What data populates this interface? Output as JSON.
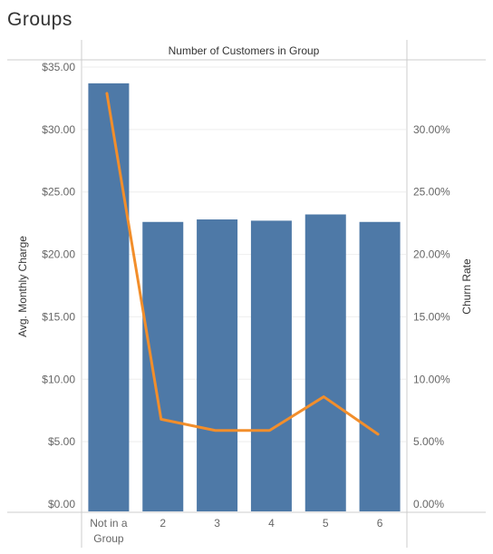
{
  "page": {
    "title": "Groups"
  },
  "chart_data": {
    "type": "bar",
    "title": "Groups",
    "header": "Number of Customers in Group",
    "categories": [
      "Not in a Group",
      "2",
      "3",
      "4",
      "5",
      "6"
    ],
    "category_lines": [
      [
        "Not in a",
        "Group"
      ],
      [
        "2"
      ],
      [
        "3"
      ],
      [
        "4"
      ],
      [
        "5"
      ],
      [
        "6"
      ]
    ],
    "series": [
      {
        "name": "Avg. Monthly Charge",
        "type": "bar",
        "axis": "left",
        "values": [
          33.7,
          22.6,
          22.8,
          22.7,
          23.2,
          22.6
        ]
      },
      {
        "name": "Churn Rate",
        "type": "line",
        "axis": "right",
        "values": [
          32.9,
          6.8,
          5.9,
          5.9,
          8.6,
          5.6
        ]
      }
    ],
    "y_left": {
      "label": "Avg. Monthly Charge",
      "min": 0,
      "max": 35,
      "ticks": [
        0,
        5,
        10,
        15,
        20,
        25,
        30,
        35
      ],
      "tick_labels": [
        "$0.00",
        "$5.00",
        "$10.00",
        "$15.00",
        "$20.00",
        "$25.00",
        "$30.00",
        "$35.00"
      ]
    },
    "y_right": {
      "label": "Churn Rate",
      "min": 0,
      "max": 35,
      "ticks": [
        0,
        5,
        10,
        15,
        20,
        25,
        30
      ],
      "tick_labels": [
        "0.00%",
        "5.00%",
        "10.00%",
        "15.00%",
        "20.00%",
        "25.00%",
        "30.00%"
      ]
    },
    "colors": {
      "bar": "#4e79a7",
      "line": "#f28e2b",
      "grid": "#eeeeee",
      "axis": "#cccccc"
    },
    "grid": true,
    "legend": "none"
  }
}
